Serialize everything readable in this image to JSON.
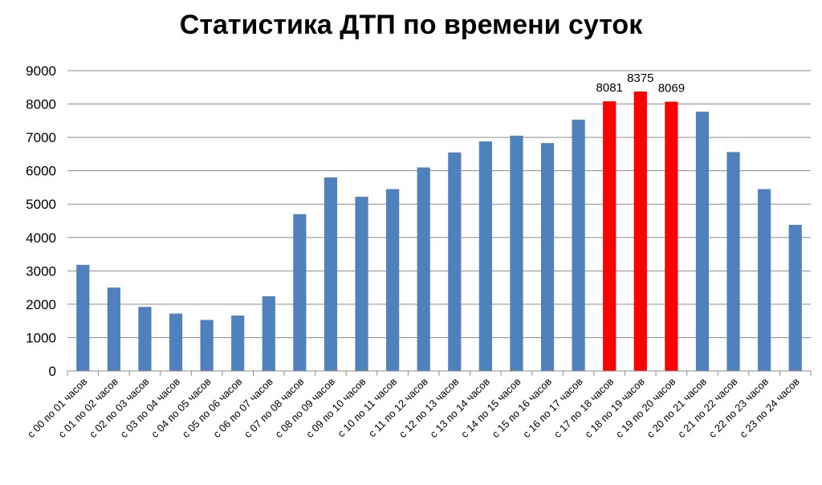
{
  "chart_data": {
    "type": "bar",
    "title": "Статистика ДТП по времени суток",
    "xlabel": "",
    "ylabel": "",
    "ylim": [
      0,
      9000
    ],
    "yticks": [
      0,
      1000,
      2000,
      3000,
      4000,
      5000,
      6000,
      7000,
      8000,
      9000
    ],
    "grid": true,
    "legend": "none",
    "categories": [
      "с 00 по 01 часов",
      "с 01 по 02 часов",
      "с 02 по 03 часов",
      "с 03 по 04 часов",
      "с 04 по 05 часов",
      "с 05 по 06 часов",
      "с 06 по 07 часов",
      "с 07 по 08 часов",
      "с 08 по 09 часов",
      "с 09 по 10 часов",
      "с 10 по 11 часов",
      "с 11 по 12 часов",
      "с 12 по 13 часов",
      "с 13 по 14 часов",
      "с 14 по 15 часов",
      "с 15 по 16 часов",
      "с 16 по 17 часов",
      "с 17 по 18 часов",
      "с 18 по 19 часов",
      "с 19 по 20 часов",
      "с 20 по 21 часов",
      "с 21 по 22 часов",
      "с 22 по 23 часов",
      "с 23 по 24 часов"
    ],
    "values": [
      3180,
      2500,
      1920,
      1720,
      1530,
      1660,
      2240,
      4700,
      5800,
      5220,
      5450,
      6100,
      6550,
      6880,
      7050,
      6830,
      7530,
      8081,
      8375,
      8069,
      7770,
      6560,
      5450,
      4380
    ],
    "data_labels": [
      null,
      null,
      null,
      null,
      null,
      null,
      null,
      null,
      null,
      null,
      null,
      null,
      null,
      null,
      null,
      null,
      null,
      "8081",
      "8375",
      "8069",
      null,
      null,
      null,
      null
    ],
    "highlighted": [
      17,
      18,
      19
    ],
    "colors": {
      "bar": "#4f81bd",
      "highlight": "#ff0000",
      "grid": "#8c8c8c"
    }
  }
}
